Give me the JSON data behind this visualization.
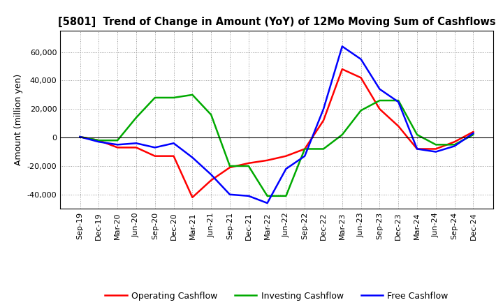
{
  "title": "[5801]  Trend of Change in Amount (YoY) of 12Mo Moving Sum of Cashflows",
  "ylabel": "Amount (million yen)",
  "background_color": "#ffffff",
  "grid_color": "#999999",
  "x_labels": [
    "Sep-19",
    "Dec-19",
    "Mar-20",
    "Jun-20",
    "Sep-20",
    "Dec-20",
    "Mar-21",
    "Jun-21",
    "Sep-21",
    "Dec-21",
    "Mar-22",
    "Jun-22",
    "Sep-22",
    "Dec-22",
    "Mar-23",
    "Jun-23",
    "Sep-23",
    "Dec-23",
    "Mar-24",
    "Jun-24",
    "Sep-24",
    "Dec-24"
  ],
  "operating_cashflow": [
    500,
    -2000,
    -7000,
    -7000,
    -13000,
    -13000,
    -42000,
    -30000,
    -21000,
    -18000,
    -16000,
    -13000,
    -8000,
    12000,
    48000,
    42000,
    20000,
    8000,
    -8000,
    -8000,
    -3000,
    4000
  ],
  "investing_cashflow": [
    500,
    -2000,
    -2000,
    14000,
    28000,
    28000,
    30000,
    16000,
    -20000,
    -20000,
    -41000,
    -41000,
    -8000,
    -8000,
    2000,
    19000,
    26000,
    26000,
    2000,
    -5000,
    -5000,
    2000
  ],
  "free_cashflow": [
    500,
    -3000,
    -5000,
    -4000,
    -7000,
    -4000,
    -14000,
    -26000,
    -40000,
    -41000,
    -46000,
    -22000,
    -13000,
    20000,
    64000,
    55000,
    34000,
    25000,
    -8000,
    -10000,
    -6000,
    3000
  ],
  "operating_color": "#ff0000",
  "investing_color": "#00aa00",
  "free_color": "#0000ff",
  "ylim": [
    -50000,
    75000
  ],
  "yticks": [
    -40000,
    -20000,
    0,
    20000,
    40000,
    60000
  ],
  "line_width": 1.8
}
